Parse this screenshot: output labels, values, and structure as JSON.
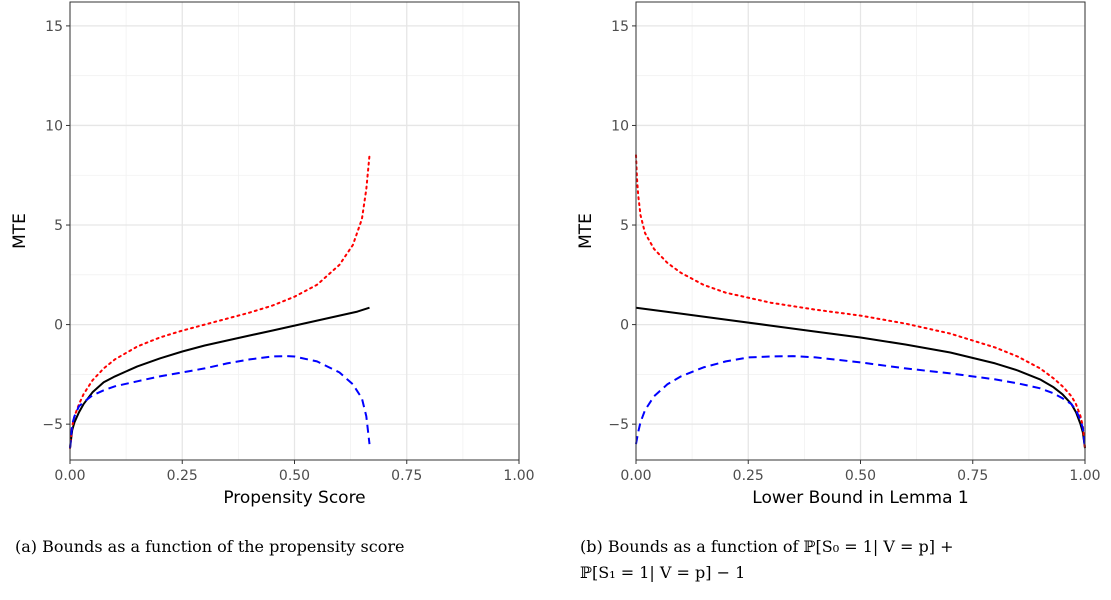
{
  "chart_data": [
    {
      "type": "line",
      "xlabel": "Propensity Score",
      "ylabel": "MTE",
      "xlim": [
        0,
        1
      ],
      "ylim": [
        -6.8,
        16.2
      ],
      "xticks": [
        "0.00",
        "0.25",
        "0.50",
        "0.75",
        "1.00"
      ],
      "yticks": [
        "-5",
        "0",
        "5",
        "10",
        "15"
      ],
      "grid": true,
      "series": [
        {
          "style": "solid",
          "color": "#000000",
          "x": [
            0.0,
            0.005,
            0.01,
            0.02,
            0.03,
            0.05,
            0.075,
            0.1,
            0.15,
            0.2,
            0.25,
            0.3,
            0.35,
            0.4,
            0.45,
            0.5,
            0.55,
            0.6,
            0.64,
            0.667
          ],
          "y": [
            -6.2,
            -5.3,
            -4.9,
            -4.4,
            -4.0,
            -3.4,
            -2.9,
            -2.6,
            -2.1,
            -1.7,
            -1.35,
            -1.05,
            -0.8,
            -0.55,
            -0.3,
            -0.05,
            0.2,
            0.45,
            0.65,
            0.85
          ]
        },
        {
          "style": "dotted",
          "color": "#ff0000",
          "x": [
            0.0,
            0.005,
            0.01,
            0.02,
            0.03,
            0.05,
            0.075,
            0.1,
            0.15,
            0.2,
            0.25,
            0.3,
            0.35,
            0.4,
            0.45,
            0.5,
            0.55,
            0.6,
            0.63,
            0.65,
            0.66,
            0.667
          ],
          "y": [
            -6.2,
            -5.1,
            -4.6,
            -4.0,
            -3.5,
            -2.8,
            -2.2,
            -1.75,
            -1.1,
            -0.65,
            -0.3,
            0.0,
            0.3,
            0.6,
            0.95,
            1.4,
            2.0,
            3.0,
            4.0,
            5.3,
            6.8,
            8.5
          ]
        },
        {
          "style": "dashed",
          "color": "#0000ff",
          "x": [
            0.0,
            0.005,
            0.01,
            0.02,
            0.03,
            0.05,
            0.075,
            0.1,
            0.15,
            0.2,
            0.25,
            0.3,
            0.35,
            0.4,
            0.45,
            0.48,
            0.5,
            0.55,
            0.6,
            0.63,
            0.65,
            0.66,
            0.667
          ],
          "y": [
            -6.2,
            -5.0,
            -4.6,
            -4.1,
            -3.9,
            -3.55,
            -3.3,
            -3.1,
            -2.85,
            -2.6,
            -2.4,
            -2.2,
            -1.95,
            -1.75,
            -1.6,
            -1.58,
            -1.6,
            -1.85,
            -2.4,
            -3.0,
            -3.7,
            -4.6,
            -6.0
          ]
        }
      ]
    },
    {
      "type": "line",
      "xlabel": "Lower Bound in Lemma 1",
      "ylabel": "MTE",
      "xlim": [
        0,
        1
      ],
      "ylim": [
        -6.8,
        16.2
      ],
      "xticks": [
        "0.00",
        "0.25",
        "0.50",
        "0.75",
        "1.00"
      ],
      "yticks": [
        "-5",
        "0",
        "5",
        "10",
        "15"
      ],
      "grid": true,
      "series": [
        {
          "style": "solid",
          "color": "#000000",
          "x": [
            0.0,
            0.1,
            0.2,
            0.3,
            0.4,
            0.5,
            0.6,
            0.7,
            0.8,
            0.85,
            0.9,
            0.93,
            0.95,
            0.97,
            0.98,
            0.99,
            0.995,
            1.0
          ],
          "y": [
            0.85,
            0.55,
            0.25,
            -0.05,
            -0.35,
            -0.65,
            -1.0,
            -1.4,
            -1.95,
            -2.3,
            -2.75,
            -3.15,
            -3.5,
            -4.0,
            -4.4,
            -5.0,
            -5.4,
            -6.2
          ]
        },
        {
          "style": "dotted",
          "color": "#ff0000",
          "x": [
            0.0,
            0.002,
            0.005,
            0.01,
            0.02,
            0.04,
            0.07,
            0.1,
            0.15,
            0.2,
            0.3,
            0.4,
            0.5,
            0.6,
            0.7,
            0.8,
            0.85,
            0.9,
            0.93,
            0.95,
            0.97,
            0.98,
            0.99,
            0.995,
            1.0
          ],
          "y": [
            8.5,
            7.4,
            6.5,
            5.5,
            4.6,
            3.8,
            3.1,
            2.6,
            2.0,
            1.6,
            1.1,
            0.75,
            0.45,
            0.05,
            -0.45,
            -1.15,
            -1.6,
            -2.2,
            -2.7,
            -3.1,
            -3.6,
            -4.0,
            -4.6,
            -5.1,
            -6.2
          ]
        },
        {
          "style": "dashed",
          "color": "#0000ff",
          "x": [
            0.0,
            0.005,
            0.01,
            0.02,
            0.04,
            0.07,
            0.1,
            0.15,
            0.2,
            0.25,
            0.3,
            0.35,
            0.4,
            0.5,
            0.6,
            0.7,
            0.8,
            0.85,
            0.9,
            0.93,
            0.95,
            0.97,
            0.98,
            0.99,
            0.995,
            1.0
          ],
          "y": [
            -6.0,
            -5.4,
            -4.9,
            -4.3,
            -3.6,
            -3.0,
            -2.6,
            -2.15,
            -1.85,
            -1.65,
            -1.6,
            -1.58,
            -1.65,
            -1.9,
            -2.2,
            -2.45,
            -2.75,
            -2.95,
            -3.2,
            -3.45,
            -3.7,
            -4.0,
            -4.3,
            -4.8,
            -5.2,
            -6.2
          ]
        }
      ]
    }
  ],
  "captions": {
    "a": "(a) Bounds as a function of the propensity score",
    "b_line1": "(b) Bounds as a function of ℙ[S₀ = 1| V = p] +",
    "b_line2": "ℙ[S₁ = 1| V = p] − 1"
  }
}
